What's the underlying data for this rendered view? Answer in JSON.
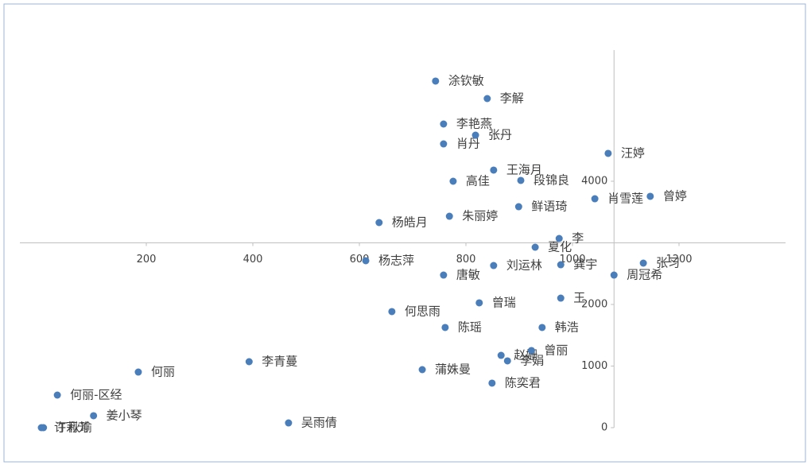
{
  "chart_data": {
    "type": "scatter",
    "color": "#4a7ebb",
    "xlim": [
      0,
      1400
    ],
    "ylim": [
      0,
      6000
    ],
    "xticks": [
      200,
      400,
      600,
      800,
      1000,
      1200
    ],
    "yticks": [
      0,
      1000,
      2000,
      4000
    ],
    "x_axis_crosses_at": 3000,
    "y_axis_crosses_at": 1078,
    "labels": [
      "涂钦敏",
      "李解",
      "李艳燕",
      "肖丹",
      "张丹",
      "汪婷",
      "王海月",
      "高佳",
      "段锦良",
      "曾婷",
      "肖雪莲",
      "鲜语琦",
      "朱丽婷",
      "杨皓月",
      "夏化",
      "李",
      "杨志萍",
      "张习",
      "刘运林",
      "龚宇",
      "唐敏",
      "周冠希",
      "曾瑞",
      "王",
      "何思雨",
      "陈瑶",
      "韩浩",
      "赵姗",
      "曾丽",
      "李娟",
      "何丽",
      "李青蔓",
      "蒲姝曼",
      "陈奕君",
      "何丽-区经",
      "姜小琴",
      "吴雨倩",
      "许莉芳",
      "丁秋瑜"
    ],
    "x": [
      743,
      840,
      758,
      758,
      818,
      1067,
      852,
      776,
      903,
      1146,
      1042,
      899,
      769,
      637,
      930,
      975,
      612,
      1133,
      852,
      978,
      758,
      1078,
      825,
      978,
      661,
      761,
      943,
      866,
      923,
      878,
      185,
      393,
      718,
      849,
      33,
      101,
      467,
      3,
      7
    ],
    "values": [
      5626,
      5342,
      4929,
      4606,
      4748,
      4452,
      4181,
      4000,
      4013,
      3755,
      3716,
      3587,
      3432,
      3329,
      2929,
      3071,
      2710,
      2671,
      2632,
      2645,
      2477,
      2477,
      2026,
      2103,
      1884,
      1626,
      1626,
      1174,
      1252,
      1084,
      903,
      1071,
      942,
      723,
      529,
      194,
      77,
      0,
      0
    ]
  }
}
